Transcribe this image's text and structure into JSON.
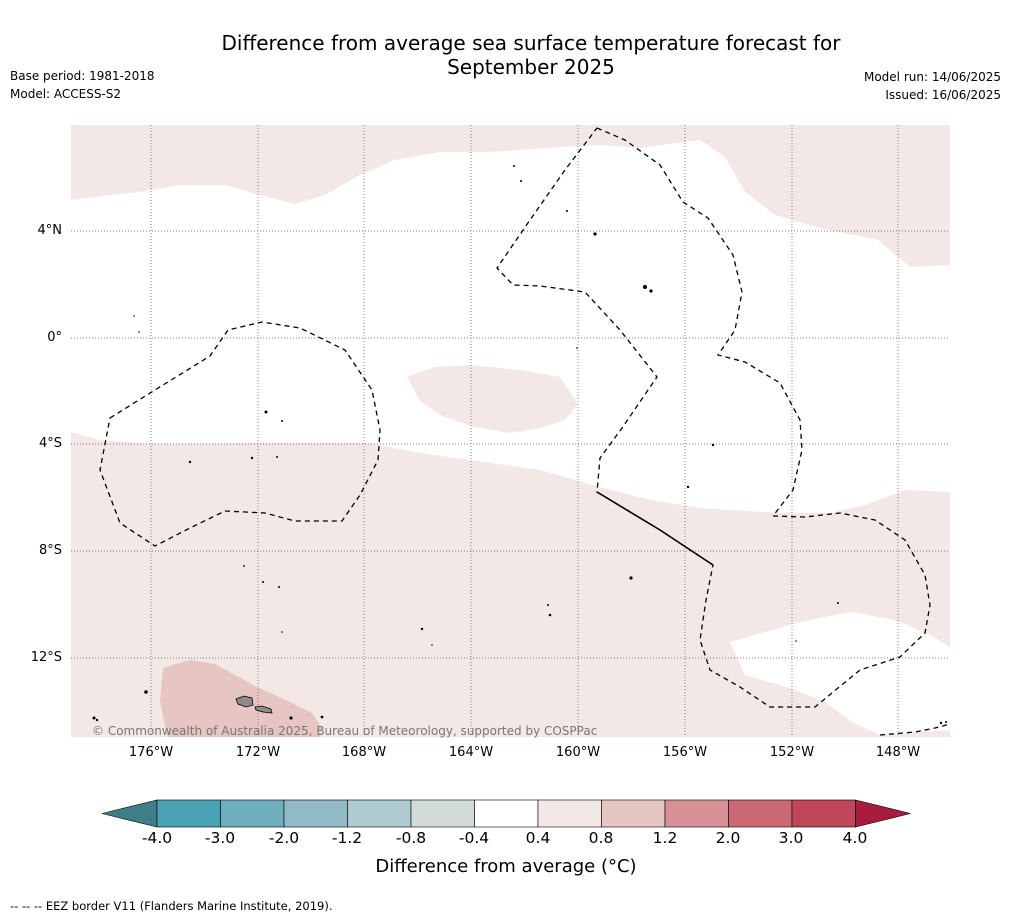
{
  "header": {
    "title_line1": "Difference from average sea surface temperature forecast for",
    "title_line2": "September 2025",
    "base_period": "Base period: 1981-2018",
    "model": "Model: ACCESS-S2",
    "model_run": "Model run: 14/06/2025",
    "issued": "Issued: 16/06/2025"
  },
  "map": {
    "lat_labels": [
      "4°N",
      "0°",
      "4°S",
      "8°S",
      "12°S"
    ],
    "lon_labels": [
      "176°W",
      "172°W",
      "168°W",
      "164°W",
      "160°W",
      "156°W",
      "152°W",
      "148°W"
    ],
    "copyright": "© Commonwealth of Australia 2025, Bureau of Meteorology, supported by COSPPac",
    "colors": {
      "anomaly_0_4_to_0_8": "#f4e8e7",
      "anomaly_0_8_to_1_2": "#e6c5c2",
      "eez_border": "#000000",
      "land": "#8c8c8c"
    }
  },
  "colorbar": {
    "ticks": [
      "-4.0",
      "-3.0",
      "-2.0",
      "-1.2",
      "-0.8",
      "-0.4",
      "0.4",
      "0.8",
      "1.2",
      "2.0",
      "3.0",
      "4.0"
    ],
    "colors": [
      "#3e7e88",
      "#4aa3b5",
      "#6faebd",
      "#90bac6",
      "#aecbd1",
      "#d3dbda",
      "#ffffff",
      "#f4e8e7",
      "#e6c5c2",
      "#d69197",
      "#cb6a76",
      "#c0465a",
      "#a81c3c"
    ],
    "title": "Difference from average (°C)"
  },
  "footnote": "--  --  -- EEZ border V11 (Flanders Marine Institute, 2019)."
}
